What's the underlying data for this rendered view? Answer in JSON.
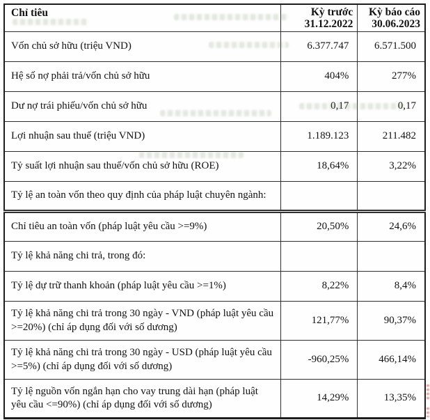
{
  "colors": {
    "table_border": "#1c1c1c",
    "text": "#121212",
    "artifact_green": "#7d9670",
    "artifact_red": "#be372d"
  },
  "table": {
    "header": {
      "criteria": "Chỉ tiêu",
      "prev_period": {
        "title": "Kỳ trước",
        "date": "31.12.2022"
      },
      "report_period": {
        "title": "Kỳ báo cáo",
        "date": "30.06.2023"
      }
    },
    "rows": [
      {
        "label": "Vốn chủ sở hữu (triệu VND)",
        "prev": "6.377.747",
        "curr": "6.571.500"
      },
      {
        "label": "Hệ số nợ phải trả/vốn chủ sở hữu",
        "prev": "404%",
        "curr": "277%"
      },
      {
        "label": "Dư nợ trái phiếu/vốn chủ sở hữu",
        "prev": "0,17",
        "curr": "0,17"
      },
      {
        "label": "Lợi nhuận sau thuế (triệu VND)",
        "prev": "1.189.123",
        "curr": "211.482"
      },
      {
        "label": "Tỷ suất lợi nhuận sau thuế/vốn chủ sở hữu (ROE)",
        "prev": "18,64%",
        "curr": "3,22%"
      },
      {
        "label": "Tỷ lệ an toàn vốn theo quy định của pháp luật chuyên ngành:",
        "prev": "",
        "curr": ""
      },
      {
        "label": "Chỉ tiêu an toàn vốn (pháp luật yêu cầu >=9%)",
        "prev": "20,50%",
        "curr": "24,6%"
      },
      {
        "label": "Tỷ lệ khả năng chi trả, trong đó:",
        "prev": "",
        "curr": ""
      },
      {
        "label": "Tỷ lệ dự trữ thanh khoản (pháp luật yêu cầu >=1%)",
        "prev": "8,22%",
        "curr": "8,4%"
      },
      {
        "label": "Tỷ lệ khả năng chi trả trong 30 ngày - VND (pháp luật yêu cầu >=20%) (chỉ áp dụng đối với số dương)",
        "prev": "121,77%",
        "curr": "90,37%"
      },
      {
        "label": "Tỷ lệ khả năng chi trả trong 30 ngày - USD (pháp luật yêu cầu >=5%) (chỉ áp dụng đối với số dương)",
        "prev": "-960,25%",
        "curr": "466,14%"
      },
      {
        "label": "Tỷ lệ nguồn vốn ngắn hạn cho vay trung dài hạn (pháp luật yêu cầu <=90%) (chỉ áp dụng đối với số dương)",
        "prev": "14,29%",
        "curr": "13,35%"
      }
    ]
  }
}
